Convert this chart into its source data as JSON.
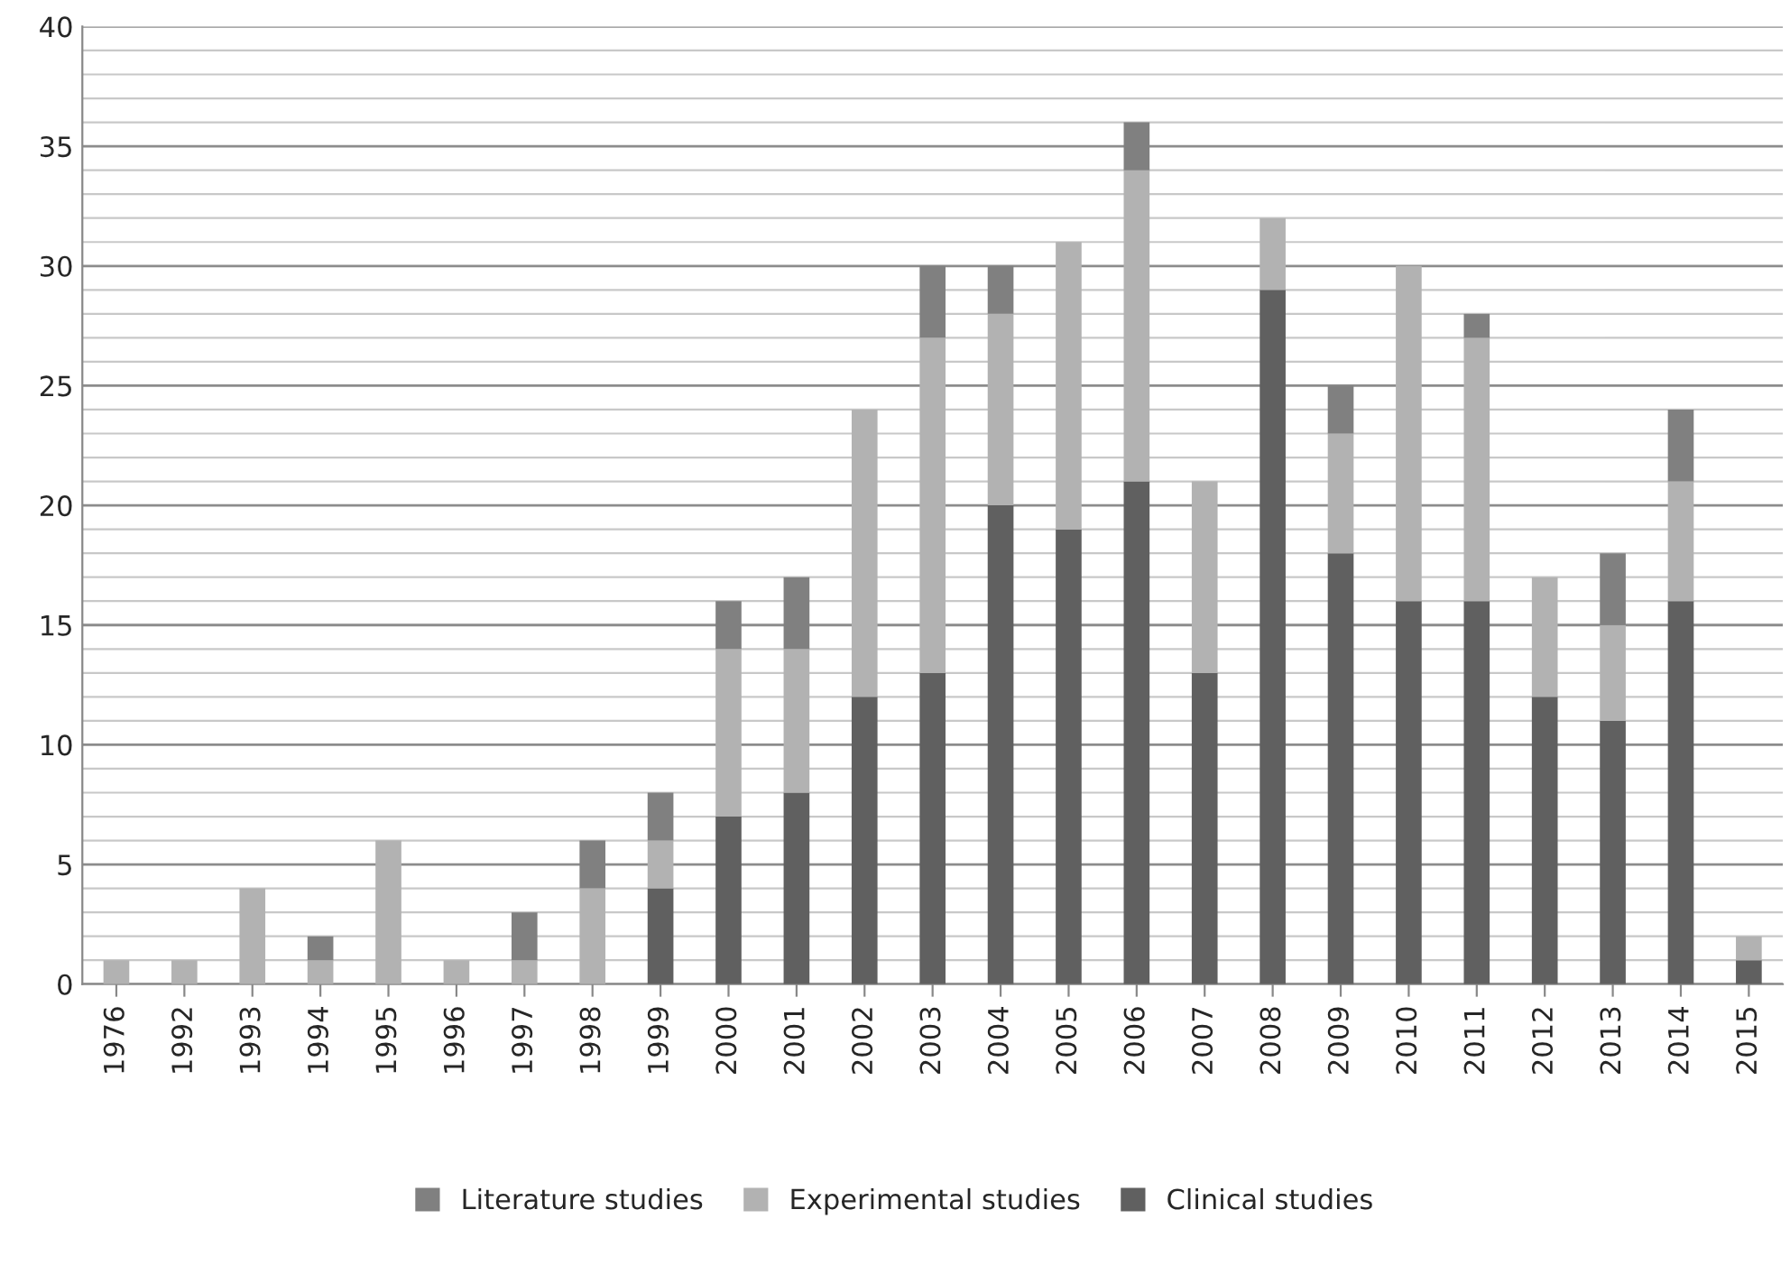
{
  "chart_data": {
    "type": "bar",
    "stacked": true,
    "categories": [
      "1976",
      "1992",
      "1993",
      "1994",
      "1995",
      "1996",
      "1997",
      "1998",
      "1999",
      "2000",
      "2001",
      "2002",
      "2003",
      "2004",
      "2005",
      "2006",
      "2007",
      "2008",
      "2009",
      "2010",
      "2011",
      "2012",
      "2013",
      "2014",
      "2015"
    ],
    "series": [
      {
        "name": "Clinical studies",
        "color": "#606060",
        "values": [
          0,
          0,
          0,
          0,
          0,
          0,
          0,
          0,
          4,
          7,
          8,
          12,
          13,
          20,
          19,
          21,
          13,
          29,
          18,
          16,
          16,
          12,
          11,
          16,
          1
        ]
      },
      {
        "name": "Experimental studies",
        "color": "#b2b2b2",
        "values": [
          1,
          1,
          4,
          1,
          6,
          1,
          1,
          4,
          2,
          7,
          6,
          12,
          14,
          8,
          12,
          13,
          8,
          3,
          5,
          14,
          11,
          5,
          4,
          5,
          1
        ]
      },
      {
        "name": "Literature studies",
        "color": "#808080",
        "values": [
          0,
          0,
          0,
          1,
          0,
          0,
          2,
          2,
          2,
          2,
          3,
          0,
          3,
          2,
          0,
          2,
          0,
          0,
          2,
          0,
          1,
          0,
          3,
          3,
          0
        ]
      }
    ],
    "ylim": [
      0,
      40
    ],
    "yticks": [
      0,
      5,
      10,
      15,
      20,
      25,
      30,
      35,
      40
    ],
    "grid": "y",
    "legend": "bottom"
  }
}
